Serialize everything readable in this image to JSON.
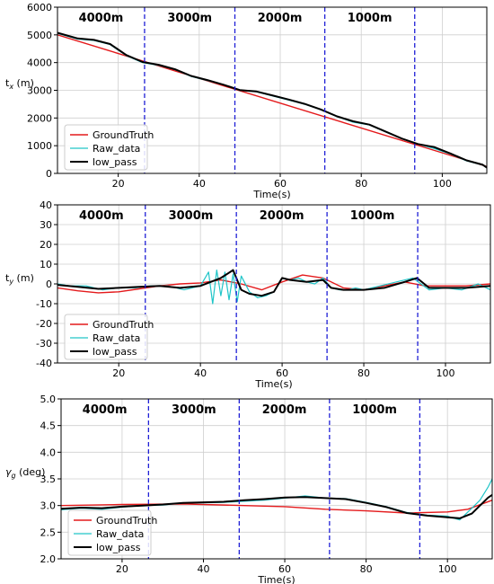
{
  "legend": {
    "ground": "GroundTruth",
    "raw": "Raw_data",
    "low": "low_pass"
  },
  "colors": {
    "ground": "#e41a1c",
    "raw": "#20c5c8",
    "low": "#000000",
    "divider": "#1f1fd6",
    "grid": "#cfcfcf"
  },
  "chart_data": [
    {
      "type": "line",
      "xlabel": "Time(s)",
      "ylabel": "t_x (m)",
      "ylim": [
        0,
        6000
      ],
      "xlim": [
        5,
        111
      ],
      "yticks": [
        0,
        1000,
        2000,
        3000,
        4000,
        5000,
        6000
      ],
      "xticks": [
        20,
        40,
        60,
        80,
        100
      ],
      "grid": true,
      "legend_position": "lower-left",
      "dividers": [
        26.5,
        48.8,
        71,
        93.2
      ],
      "segment_labels": [
        "4000m",
        "3000m",
        "2000m",
        "1000m"
      ],
      "series": [
        {
          "name": "GroundTruth",
          "x": [
            5,
            111
          ],
          "y": [
            5000,
            250
          ]
        },
        {
          "name": "Raw_data",
          "x": [
            5,
            10,
            14,
            18,
            22,
            26,
            30,
            34,
            38,
            42,
            46,
            50,
            54,
            58,
            62,
            66,
            70,
            74,
            78,
            82,
            86,
            90,
            94,
            98,
            102,
            106,
            110,
            111
          ],
          "y": [
            5050,
            4850,
            4800,
            4650,
            4250,
            4000,
            3900,
            3750,
            3500,
            3350,
            3200,
            3000,
            2950,
            2800,
            2650,
            2500,
            2300,
            2050,
            1850,
            1750,
            1500,
            1250,
            1050,
            900,
            700,
            450,
            300,
            200
          ]
        },
        {
          "name": "low_pass",
          "x": [
            5,
            10,
            14,
            18,
            22,
            26,
            30,
            34,
            38,
            42,
            46,
            50,
            54,
            58,
            62,
            66,
            70,
            74,
            78,
            82,
            86,
            90,
            94,
            98,
            102,
            106,
            110,
            111
          ],
          "y": [
            5080,
            4870,
            4820,
            4670,
            4270,
            4020,
            3920,
            3760,
            3520,
            3370,
            3200,
            3010,
            2960,
            2820,
            2670,
            2510,
            2310,
            2060,
            1880,
            1760,
            1510,
            1260,
            1060,
            950,
            720,
            470,
            310,
            210
          ]
        }
      ]
    },
    {
      "type": "line",
      "xlabel": "Time(s)",
      "ylabel": "t_y (m)",
      "ylim": [
        -40,
        40
      ],
      "xlim": [
        5,
        111
      ],
      "yticks": [
        -40,
        -30,
        -20,
        -10,
        0,
        10,
        20,
        30,
        40
      ],
      "xticks": [
        20,
        40,
        60,
        80,
        100
      ],
      "grid": true,
      "legend_position": "lower-left",
      "dividers": [
        26.5,
        48.8,
        71,
        93.2
      ],
      "segment_labels": [
        "4000m",
        "3000m",
        "2000m",
        "1000m"
      ],
      "series": [
        {
          "name": "GroundTruth",
          "x": [
            5,
            10,
            15,
            20,
            25,
            30,
            35,
            40,
            45,
            50,
            55,
            60,
            65,
            70,
            75,
            80,
            85,
            90,
            95,
            100,
            105,
            111
          ],
          "y": [
            -2,
            -3.5,
            -4.5,
            -4,
            -2.5,
            -1,
            0,
            0.5,
            2,
            0,
            -3,
            1,
            4.5,
            3,
            -2,
            -3,
            -1,
            1,
            -1,
            -1,
            -1,
            0
          ]
        },
        {
          "name": "Raw_data",
          "x": [
            5,
            8,
            12,
            16,
            20,
            24,
            28,
            32,
            36,
            40,
            42,
            43,
            44,
            45,
            46,
            47,
            48,
            49,
            50,
            52,
            54,
            56,
            58,
            60,
            62,
            64,
            66,
            68,
            70,
            72,
            74,
            76,
            78,
            80,
            84,
            88,
            92,
            96,
            100,
            104,
            108,
            111
          ],
          "y": [
            0,
            -1,
            -1,
            -3,
            -2,
            -2,
            -1,
            -1,
            -3,
            -1,
            6,
            -10,
            7,
            -6,
            6,
            -8,
            5,
            -9,
            4,
            -4,
            -7,
            -6,
            -4,
            3,
            2,
            3,
            1,
            0,
            3,
            -2,
            -3,
            -3,
            -2,
            -3,
            -1,
            1,
            3,
            -3,
            -2,
            -3,
            0,
            -3
          ]
        },
        {
          "name": "low_pass",
          "x": [
            5,
            10,
            15,
            20,
            25,
            30,
            35,
            40,
            45,
            48,
            50,
            52,
            55,
            58,
            60,
            62,
            66,
            70,
            72,
            75,
            80,
            85,
            90,
            93,
            96,
            100,
            105,
            111
          ],
          "y": [
            -0.5,
            -1.5,
            -2.5,
            -2,
            -1.5,
            -1,
            -2,
            -1,
            3,
            7,
            -3,
            -5,
            -6,
            -4,
            3,
            2,
            1,
            2,
            -2,
            -3,
            -3,
            -2,
            1,
            3,
            -2,
            -2,
            -2,
            -1
          ]
        }
      ]
    },
    {
      "type": "line",
      "xlabel": "Time(s)",
      "ylabel": "γ_g (deg)",
      "ylim": [
        2.0,
        5.0
      ],
      "xlim": [
        5,
        111
      ],
      "yticks": [
        2.0,
        2.5,
        3.0,
        3.5,
        4.0,
        4.5,
        5.0
      ],
      "xticks": [
        20,
        40,
        60,
        80,
        100
      ],
      "grid": true,
      "legend_position": "lower-left",
      "dividers": [
        26.5,
        48.8,
        71,
        93.2
      ],
      "segment_labels": [
        "4000m",
        "3000m",
        "2000m",
        "1000m"
      ],
      "series": [
        {
          "name": "GroundTruth",
          "x": [
            5,
            20,
            35,
            50,
            60,
            70,
            80,
            90,
            100,
            105,
            111
          ],
          "y": [
            3.0,
            3.02,
            3.03,
            3.0,
            2.98,
            2.93,
            2.9,
            2.86,
            2.88,
            2.93,
            3.1
          ]
        },
        {
          "name": "Raw_data",
          "x": [
            5,
            10,
            15,
            20,
            25,
            30,
            35,
            40,
            45,
            50,
            55,
            60,
            65,
            70,
            75,
            80,
            85,
            90,
            95,
            100,
            103,
            106,
            108,
            110,
            111
          ],
          "y": [
            2.92,
            2.95,
            2.93,
            2.97,
            3.0,
            3.01,
            3.05,
            3.05,
            3.06,
            3.08,
            3.1,
            3.14,
            3.18,
            3.14,
            3.13,
            3.06,
            2.98,
            2.87,
            2.82,
            2.8,
            2.73,
            2.95,
            3.1,
            3.35,
            3.5
          ]
        },
        {
          "name": "low_pass",
          "x": [
            5,
            10,
            15,
            20,
            25,
            30,
            35,
            40,
            45,
            50,
            55,
            60,
            65,
            70,
            75,
            80,
            85,
            90,
            95,
            100,
            103,
            106,
            108,
            110,
            111
          ],
          "y": [
            2.94,
            2.96,
            2.95,
            2.98,
            3.0,
            3.02,
            3.05,
            3.06,
            3.07,
            3.1,
            3.12,
            3.15,
            3.16,
            3.14,
            3.12,
            3.05,
            2.97,
            2.86,
            2.81,
            2.78,
            2.76,
            2.85,
            3.0,
            3.15,
            3.2
          ]
        }
      ]
    }
  ]
}
